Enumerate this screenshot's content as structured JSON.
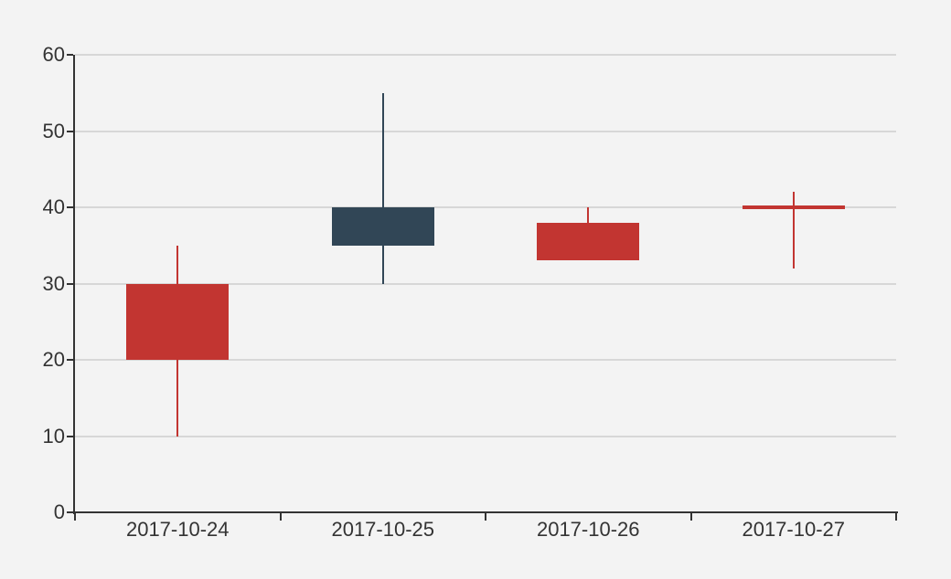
{
  "chart_data": {
    "type": "candlestick",
    "categories": [
      "2017-10-24",
      "2017-10-25",
      "2017-10-26",
      "2017-10-27"
    ],
    "series": [
      {
        "data": [
          {
            "open": 20,
            "close": 30,
            "low": 10,
            "high": 35
          },
          {
            "open": 40,
            "close": 35,
            "low": 30,
            "high": 55
          },
          {
            "open": 33,
            "close": 38,
            "low": 33,
            "high": 40
          },
          {
            "open": 40,
            "close": 40,
            "low": 32,
            "high": 42
          }
        ]
      }
    ],
    "ylim": [
      0,
      60
    ],
    "y_ticks": [
      0,
      10,
      20,
      30,
      40,
      50,
      60
    ],
    "grid": true,
    "legend_position": "none",
    "colors": {
      "bullish": "#c23531",
      "bearish": "#314656",
      "axis_line": "#333333",
      "tick_label": "#333333",
      "grid_line": "#d7d7d7",
      "background": "#f3f3f3"
    }
  }
}
